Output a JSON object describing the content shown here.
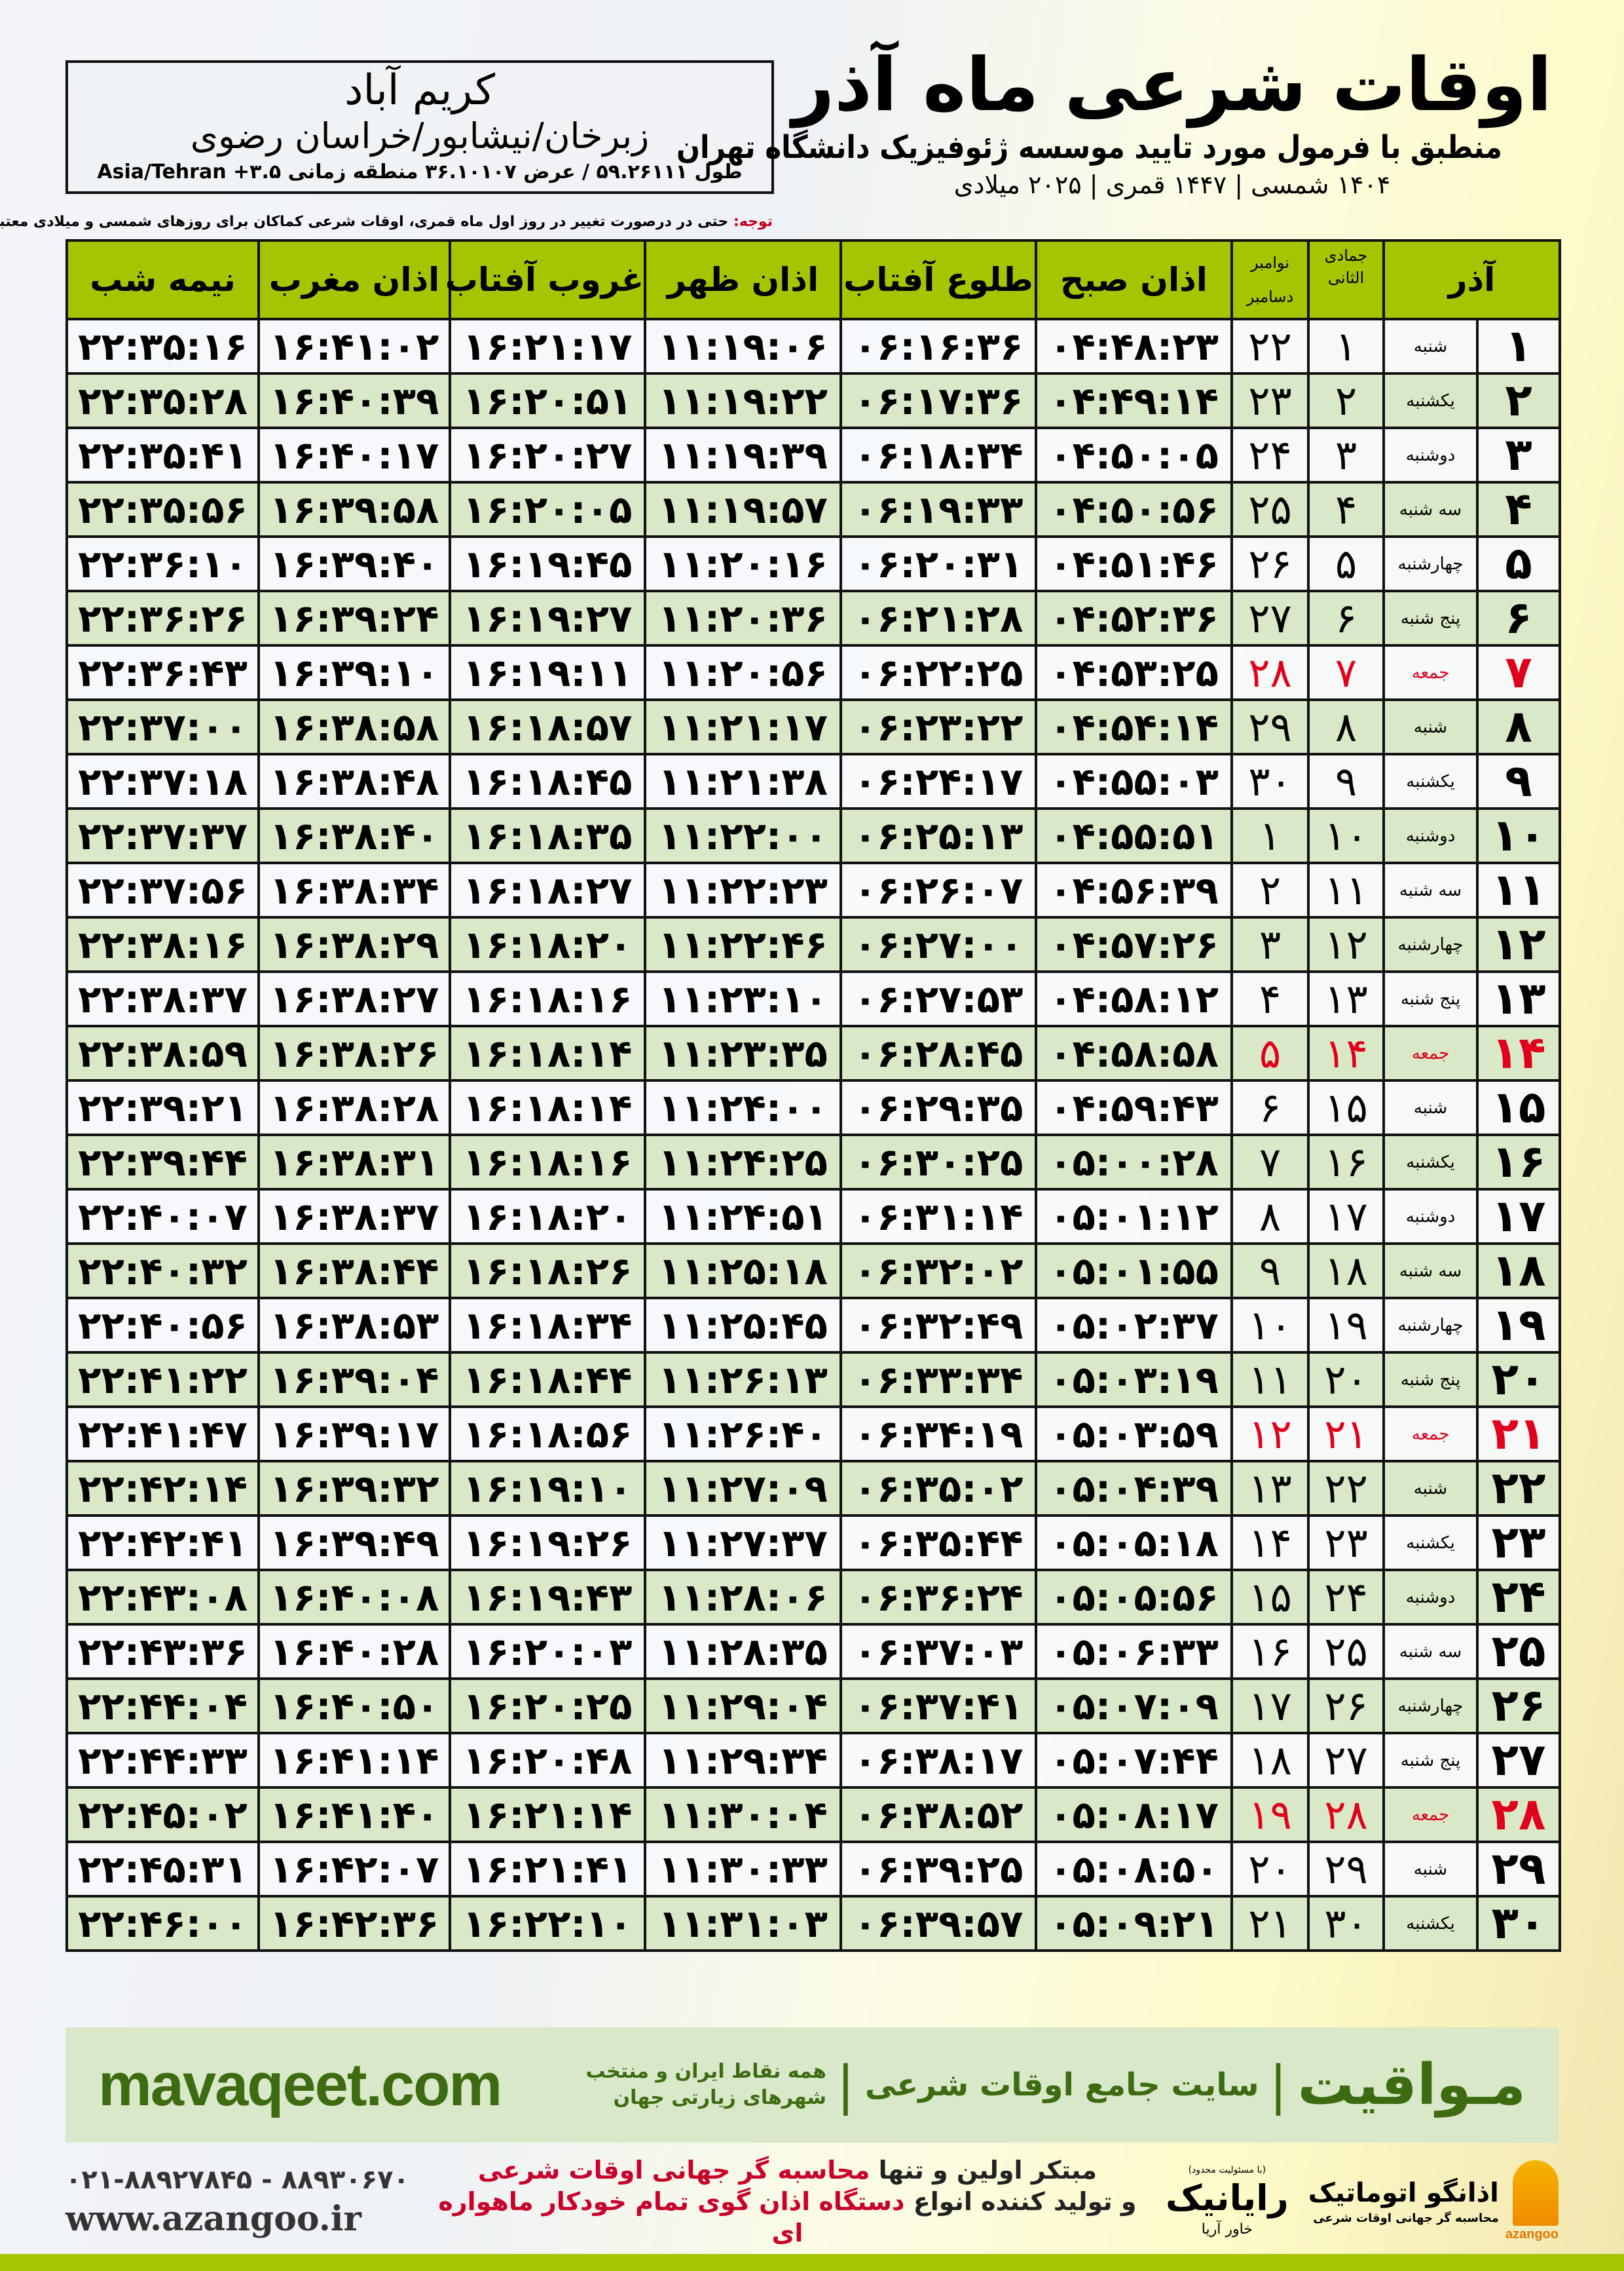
{
  "location": {
    "city": "کریم آباد",
    "region": "زبرخان/نیشابور/خراسان رضوی",
    "coords": "طول ۵۹.۲۶۱۱۱ / عرض ۳۶.۱۰۱۰۷ منطقه زمانی ۳.۵+ Asia/Tehran"
  },
  "note": {
    "label": "توجه:",
    "text": " حتی در درصورت تغییر در روز اول ماه قمری، اوقات شرعی کماکان برای روزهای شمسی و میلادی معتبر است."
  },
  "header": {
    "title": "اوقات شرعی ماه آذر",
    "subtitle": "منطبق با فرمول مورد تایید موسسه ژئوفیزیک دانشگاه تهران",
    "dateline": "۱۴۰۴ شمسی | ۱۴۴۷ قمری | ۲۰۲۵ میلادی"
  },
  "colors": {
    "header_green": "#a6c400",
    "row_green": "#d9e8c6",
    "holiday_red": "#e0001b",
    "brand_green": "#3d6b12"
  },
  "columns": {
    "day": "آذر",
    "hijri": "جمادی الثانی",
    "greg_1": "نوامبر",
    "greg_2": "دسامبر",
    "fajr": "اذان صبح",
    "sunrise": "طلوع آفتاب",
    "dhuhr": "اذان ظهر",
    "sunset": "غروب آفتاب",
    "maghrib": "اذان مغرب",
    "midnight": "نیمه شب"
  },
  "rows": [
    {
      "day": "۱",
      "weekday": "شنبه",
      "hijri": "۱",
      "greg": "۲۲",
      "fajr": "۰۴:۴۸:۲۳",
      "sunrise": "۰۶:۱۶:۳۶",
      "dhuhr": "۱۱:۱۹:۰۶",
      "sunset": "۱۶:۲۱:۱۷",
      "maghrib": "۱۶:۴۱:۰۲",
      "midnight": "۲۲:۳۵:۱۶"
    },
    {
      "day": "۲",
      "weekday": "یکشنبه",
      "hijri": "۲",
      "greg": "۲۳",
      "fajr": "۰۴:۴۹:۱۴",
      "sunrise": "۰۶:۱۷:۳۶",
      "dhuhr": "۱۱:۱۹:۲۲",
      "sunset": "۱۶:۲۰:۵۱",
      "maghrib": "۱۶:۴۰:۳۹",
      "midnight": "۲۲:۳۵:۲۸"
    },
    {
      "day": "۳",
      "weekday": "دوشنبه",
      "hijri": "۳",
      "greg": "۲۴",
      "fajr": "۰۴:۵۰:۰۵",
      "sunrise": "۰۶:۱۸:۳۴",
      "dhuhr": "۱۱:۱۹:۳۹",
      "sunset": "۱۶:۲۰:۲۷",
      "maghrib": "۱۶:۴۰:۱۷",
      "midnight": "۲۲:۳۵:۴۱"
    },
    {
      "day": "۴",
      "weekday": "سه شنبه",
      "hijri": "۴",
      "greg": "۲۵",
      "fajr": "۰۴:۵۰:۵۶",
      "sunrise": "۰۶:۱۹:۳۳",
      "dhuhr": "۱۱:۱۹:۵۷",
      "sunset": "۱۶:۲۰:۰۵",
      "maghrib": "۱۶:۳۹:۵۸",
      "midnight": "۲۲:۳۵:۵۶"
    },
    {
      "day": "۵",
      "weekday": "چهارشنبه",
      "hijri": "۵",
      "greg": "۲۶",
      "fajr": "۰۴:۵۱:۴۶",
      "sunrise": "۰۶:۲۰:۳۱",
      "dhuhr": "۱۱:۲۰:۱۶",
      "sunset": "۱۶:۱۹:۴۵",
      "maghrib": "۱۶:۳۹:۴۰",
      "midnight": "۲۲:۳۶:۱۰"
    },
    {
      "day": "۶",
      "weekday": "پنج شنبه",
      "hijri": "۶",
      "greg": "۲۷",
      "fajr": "۰۴:۵۲:۳۶",
      "sunrise": "۰۶:۲۱:۲۸",
      "dhuhr": "۱۱:۲۰:۳۶",
      "sunset": "۱۶:۱۹:۲۷",
      "maghrib": "۱۶:۳۹:۲۴",
      "midnight": "۲۲:۳۶:۲۶"
    },
    {
      "day": "۷",
      "weekday": "جمعه",
      "hijri": "۷",
      "greg": "۲۸",
      "fajr": "۰۴:۵۳:۲۵",
      "sunrise": "۰۶:۲۲:۲۵",
      "dhuhr": "۱۱:۲۰:۵۶",
      "sunset": "۱۶:۱۹:۱۱",
      "maghrib": "۱۶:۳۹:۱۰",
      "midnight": "۲۲:۳۶:۴۳",
      "holiday": true
    },
    {
      "day": "۸",
      "weekday": "شنبه",
      "hijri": "۸",
      "greg": "۲۹",
      "fajr": "۰۴:۵۴:۱۴",
      "sunrise": "۰۶:۲۳:۲۲",
      "dhuhr": "۱۱:۲۱:۱۷",
      "sunset": "۱۶:۱۸:۵۷",
      "maghrib": "۱۶:۳۸:۵۸",
      "midnight": "۲۲:۳۷:۰۰"
    },
    {
      "day": "۹",
      "weekday": "یکشنبه",
      "hijri": "۹",
      "greg": "۳۰",
      "fajr": "۰۴:۵۵:۰۳",
      "sunrise": "۰۶:۲۴:۱۷",
      "dhuhr": "۱۱:۲۱:۳۸",
      "sunset": "۱۶:۱۸:۴۵",
      "maghrib": "۱۶:۳۸:۴۸",
      "midnight": "۲۲:۳۷:۱۸"
    },
    {
      "day": "۱۰",
      "weekday": "دوشنبه",
      "hijri": "۱۰",
      "greg": "۱",
      "fajr": "۰۴:۵۵:۵۱",
      "sunrise": "۰۶:۲۵:۱۳",
      "dhuhr": "۱۱:۲۲:۰۰",
      "sunset": "۱۶:۱۸:۳۵",
      "maghrib": "۱۶:۳۸:۴۰",
      "midnight": "۲۲:۳۷:۳۷"
    },
    {
      "day": "۱۱",
      "weekday": "سه شنبه",
      "hijri": "۱۱",
      "greg": "۲",
      "fajr": "۰۴:۵۶:۳۹",
      "sunrise": "۰۶:۲۶:۰۷",
      "dhuhr": "۱۱:۲۲:۲۳",
      "sunset": "۱۶:۱۸:۲۷",
      "maghrib": "۱۶:۳۸:۳۴",
      "midnight": "۲۲:۳۷:۵۶"
    },
    {
      "day": "۱۲",
      "weekday": "چهارشنبه",
      "hijri": "۱۲",
      "greg": "۳",
      "fajr": "۰۴:۵۷:۲۶",
      "sunrise": "۰۶:۲۷:۰۰",
      "dhuhr": "۱۱:۲۲:۴۶",
      "sunset": "۱۶:۱۸:۲۰",
      "maghrib": "۱۶:۳۸:۲۹",
      "midnight": "۲۲:۳۸:۱۶"
    },
    {
      "day": "۱۳",
      "weekday": "پنج شنبه",
      "hijri": "۱۳",
      "greg": "۴",
      "fajr": "۰۴:۵۸:۱۲",
      "sunrise": "۰۶:۲۷:۵۳",
      "dhuhr": "۱۱:۲۳:۱۰",
      "sunset": "۱۶:۱۸:۱۶",
      "maghrib": "۱۶:۳۸:۲۷",
      "midnight": "۲۲:۳۸:۳۷"
    },
    {
      "day": "۱۴",
      "weekday": "جمعه",
      "hijri": "۱۴",
      "greg": "۵",
      "fajr": "۰۴:۵۸:۵۸",
      "sunrise": "۰۶:۲۸:۴۵",
      "dhuhr": "۱۱:۲۳:۳۵",
      "sunset": "۱۶:۱۸:۱۴",
      "maghrib": "۱۶:۳۸:۲۶",
      "midnight": "۲۲:۳۸:۵۹",
      "holiday": true
    },
    {
      "day": "۱۵",
      "weekday": "شنبه",
      "hijri": "۱۵",
      "greg": "۶",
      "fajr": "۰۴:۵۹:۴۳",
      "sunrise": "۰۶:۲۹:۳۵",
      "dhuhr": "۱۱:۲۴:۰۰",
      "sunset": "۱۶:۱۸:۱۴",
      "maghrib": "۱۶:۳۸:۲۸",
      "midnight": "۲۲:۳۹:۲۱"
    },
    {
      "day": "۱۶",
      "weekday": "یکشنبه",
      "hijri": "۱۶",
      "greg": "۷",
      "fajr": "۰۵:۰۰:۲۸",
      "sunrise": "۰۶:۳۰:۲۵",
      "dhuhr": "۱۱:۲۴:۲۵",
      "sunset": "۱۶:۱۸:۱۶",
      "maghrib": "۱۶:۳۸:۳۱",
      "midnight": "۲۲:۳۹:۴۴"
    },
    {
      "day": "۱۷",
      "weekday": "دوشنبه",
      "hijri": "۱۷",
      "greg": "۸",
      "fajr": "۰۵:۰۱:۱۲",
      "sunrise": "۰۶:۳۱:۱۴",
      "dhuhr": "۱۱:۲۴:۵۱",
      "sunset": "۱۶:۱۸:۲۰",
      "maghrib": "۱۶:۳۸:۳۷",
      "midnight": "۲۲:۴۰:۰۷"
    },
    {
      "day": "۱۸",
      "weekday": "سه شنبه",
      "hijri": "۱۸",
      "greg": "۹",
      "fajr": "۰۵:۰۱:۵۵",
      "sunrise": "۰۶:۳۲:۰۲",
      "dhuhr": "۱۱:۲۵:۱۸",
      "sunset": "۱۶:۱۸:۲۶",
      "maghrib": "۱۶:۳۸:۴۴",
      "midnight": "۲۲:۴۰:۳۲"
    },
    {
      "day": "۱۹",
      "weekday": "چهارشنبه",
      "hijri": "۱۹",
      "greg": "۱۰",
      "fajr": "۰۵:۰۲:۳۷",
      "sunrise": "۰۶:۳۲:۴۹",
      "dhuhr": "۱۱:۲۵:۴۵",
      "sunset": "۱۶:۱۸:۳۴",
      "maghrib": "۱۶:۳۸:۵۳",
      "midnight": "۲۲:۴۰:۵۶"
    },
    {
      "day": "۲۰",
      "weekday": "پنج شنبه",
      "hijri": "۲۰",
      "greg": "۱۱",
      "fajr": "۰۵:۰۳:۱۹",
      "sunrise": "۰۶:۳۳:۳۴",
      "dhuhr": "۱۱:۲۶:۱۳",
      "sunset": "۱۶:۱۸:۴۴",
      "maghrib": "۱۶:۳۹:۰۴",
      "midnight": "۲۲:۴۱:۲۲"
    },
    {
      "day": "۲۱",
      "weekday": "جمعه",
      "hijri": "۲۱",
      "greg": "۱۲",
      "fajr": "۰۵:۰۳:۵۹",
      "sunrise": "۰۶:۳۴:۱۹",
      "dhuhr": "۱۱:۲۶:۴۰",
      "sunset": "۱۶:۱۸:۵۶",
      "maghrib": "۱۶:۳۹:۱۷",
      "midnight": "۲۲:۴۱:۴۷",
      "holiday": true
    },
    {
      "day": "۲۲",
      "weekday": "شنبه",
      "hijri": "۲۲",
      "greg": "۱۳",
      "fajr": "۰۵:۰۴:۳۹",
      "sunrise": "۰۶:۳۵:۰۲",
      "dhuhr": "۱۱:۲۷:۰۹",
      "sunset": "۱۶:۱۹:۱۰",
      "maghrib": "۱۶:۳۹:۳۲",
      "midnight": "۲۲:۴۲:۱۴"
    },
    {
      "day": "۲۳",
      "weekday": "یکشنبه",
      "hijri": "۲۳",
      "greg": "۱۴",
      "fajr": "۰۵:۰۵:۱۸",
      "sunrise": "۰۶:۳۵:۴۴",
      "dhuhr": "۱۱:۲۷:۳۷",
      "sunset": "۱۶:۱۹:۲۶",
      "maghrib": "۱۶:۳۹:۴۹",
      "midnight": "۲۲:۴۲:۴۱"
    },
    {
      "day": "۲۴",
      "weekday": "دوشنبه",
      "hijri": "۲۴",
      "greg": "۱۵",
      "fajr": "۰۵:۰۵:۵۶",
      "sunrise": "۰۶:۳۶:۲۴",
      "dhuhr": "۱۱:۲۸:۰۶",
      "sunset": "۱۶:۱۹:۴۳",
      "maghrib": "۱۶:۴۰:۰۸",
      "midnight": "۲۲:۴۳:۰۸"
    },
    {
      "day": "۲۵",
      "weekday": "سه شنبه",
      "hijri": "۲۵",
      "greg": "۱۶",
      "fajr": "۰۵:۰۶:۳۳",
      "sunrise": "۰۶:۳۷:۰۳",
      "dhuhr": "۱۱:۲۸:۳۵",
      "sunset": "۱۶:۲۰:۰۳",
      "maghrib": "۱۶:۴۰:۲۸",
      "midnight": "۲۲:۴۳:۳۶"
    },
    {
      "day": "۲۶",
      "weekday": "چهارشنبه",
      "hijri": "۲۶",
      "greg": "۱۷",
      "fajr": "۰۵:۰۷:۰۹",
      "sunrise": "۰۶:۳۷:۴۱",
      "dhuhr": "۱۱:۲۹:۰۴",
      "sunset": "۱۶:۲۰:۲۵",
      "maghrib": "۱۶:۴۰:۵۰",
      "midnight": "۲۲:۴۴:۰۴"
    },
    {
      "day": "۲۷",
      "weekday": "پنج شنبه",
      "hijri": "۲۷",
      "greg": "۱۸",
      "fajr": "۰۵:۰۷:۴۴",
      "sunrise": "۰۶:۳۸:۱۷",
      "dhuhr": "۱۱:۲۹:۳۴",
      "sunset": "۱۶:۲۰:۴۸",
      "maghrib": "۱۶:۴۱:۱۴",
      "midnight": "۲۲:۴۴:۳۳"
    },
    {
      "day": "۲۸",
      "weekday": "جمعه",
      "hijri": "۲۸",
      "greg": "۱۹",
      "fajr": "۰۵:۰۸:۱۷",
      "sunrise": "۰۶:۳۸:۵۲",
      "dhuhr": "۱۱:۳۰:۰۴",
      "sunset": "۱۶:۲۱:۱۴",
      "maghrib": "۱۶:۴۱:۴۰",
      "midnight": "۲۲:۴۵:۰۲",
      "holiday": true
    },
    {
      "day": "۲۹",
      "weekday": "شنبه",
      "hijri": "۲۹",
      "greg": "۲۰",
      "fajr": "۰۵:۰۸:۵۰",
      "sunrise": "۰۶:۳۹:۲۵",
      "dhuhr": "۱۱:۳۰:۳۳",
      "sunset": "۱۶:۲۱:۴۱",
      "maghrib": "۱۶:۴۲:۰۷",
      "midnight": "۲۲:۴۵:۳۱"
    },
    {
      "day": "۳۰",
      "weekday": "یکشنبه",
      "hijri": "۳۰",
      "greg": "۲۱",
      "fajr": "۰۵:۰۹:۲۱",
      "sunrise": "۰۶:۳۹:۵۷",
      "dhuhr": "۱۱:۳۱:۰۳",
      "sunset": "۱۶:۲۲:۱۰",
      "maghrib": "۱۶:۴۲:۳۶",
      "midnight": "۲۲:۴۶:۰۰"
    }
  ],
  "banner": {
    "logo": "مـواقیت",
    "separator": "|",
    "slogan": "سایت جامع اوقات شرعی",
    "sub": "همه نقاط ایران و منتخب شهرهای زیارتی جهان",
    "site": "mavaqeet.com"
  },
  "footer": {
    "phone": "۰۲۱-۸۸۹۲۷۸۴۵ - ۸۸۹۳۰۶۷۰",
    "website": "www.azangoo.ir",
    "promo_line1_a": "مبتکر اولین و تنها ",
    "promo_line1_b": "محاسبه گر جهانی اوقات شرعی",
    "promo_line2_a": "و تولید کننده انواع ",
    "promo_line2_b": "دستگاه اذان گوی تمام خودکار ماهواره ای",
    "rayanik_note": "(با مسئولیت محدود)",
    "rayanik_name": "رایانیک",
    "rayanik_sub": "خاور آریا",
    "azangoo_name": "اذانگو اتوماتیک",
    "azangoo_sub": "محاسبه گر جهانی اوقات شرعی",
    "azangoo_en": "azangoo"
  }
}
